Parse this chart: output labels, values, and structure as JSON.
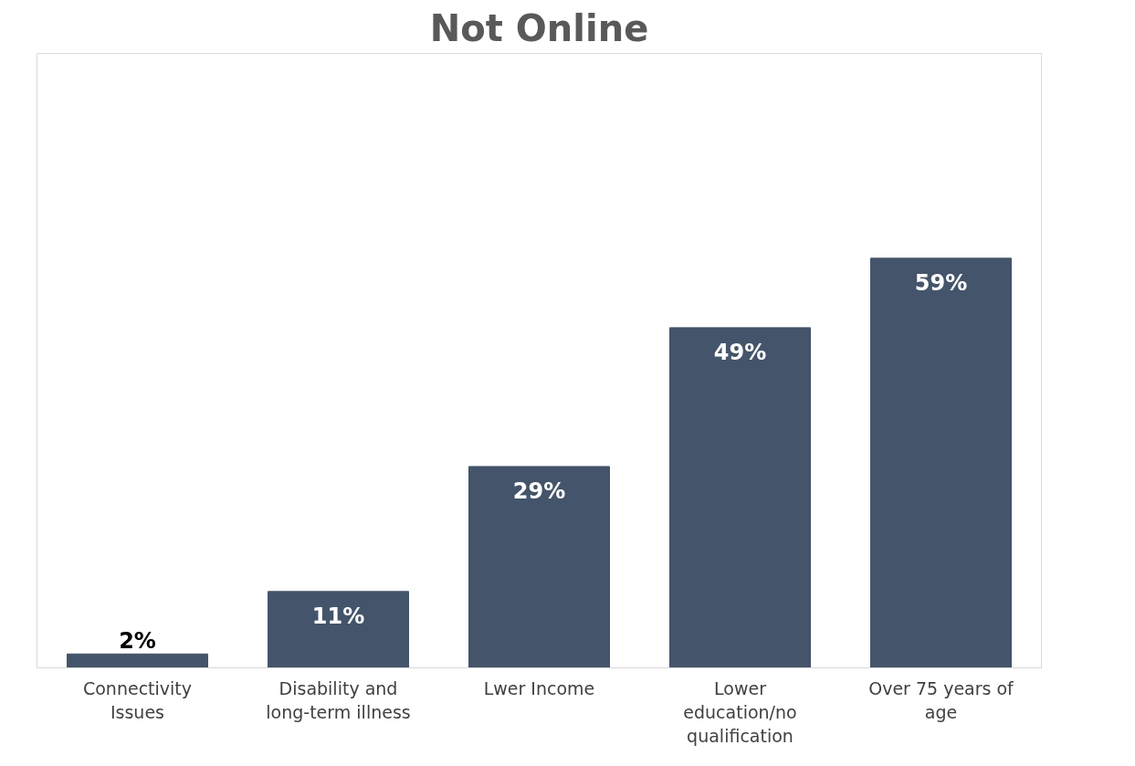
{
  "chart_data": {
    "type": "bar",
    "title": "Not Online",
    "categories": [
      "Connectivity Issues",
      "Disability and long-term illness",
      "Lwer Income",
      "Lower education/no qualification",
      "Over 75 years of age"
    ],
    "values": [
      2,
      11,
      29,
      49,
      59
    ],
    "value_labels": [
      "2%",
      "11%",
      "29%",
      "49%",
      "59%"
    ],
    "color": "#44546a",
    "grid": false
  }
}
